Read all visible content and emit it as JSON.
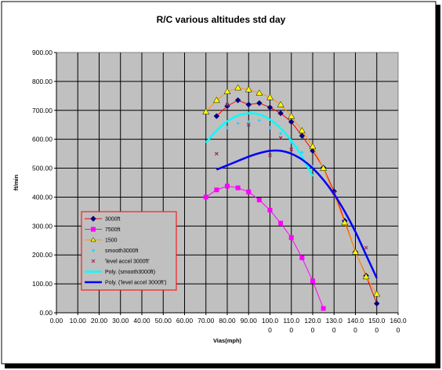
{
  "chart_data": {
    "type": "line",
    "title": "R/C various altitudes std day",
    "xlabel": "Vias(mph)",
    "ylabel": "ft/min",
    "xlim": [
      0,
      160
    ],
    "ylim": [
      0,
      900
    ],
    "x_ticks": [
      [
        "0.00",
        ""
      ],
      [
        "10.00",
        ""
      ],
      [
        "20.00",
        ""
      ],
      [
        "30.00",
        ""
      ],
      [
        "40.00",
        ""
      ],
      [
        "50.00",
        ""
      ],
      [
        "60.00",
        ""
      ],
      [
        "70.00",
        ""
      ],
      [
        "80.00",
        ""
      ],
      [
        "90.00",
        ""
      ],
      [
        "100.0",
        "0"
      ],
      [
        "110.0",
        "0"
      ],
      [
        "120.0",
        "0"
      ],
      [
        "130.0",
        "0"
      ],
      [
        "140.0",
        "0"
      ],
      [
        "150.0",
        "0"
      ],
      [
        "160.0",
        "0"
      ]
    ],
    "y_ticks": [
      "0.00",
      "100.00",
      "200.00",
      "300.00",
      "400.00",
      "500.00",
      "600.00",
      "700.00",
      "800.00",
      "900.00"
    ],
    "grid": true,
    "legend_position": "bottom-left",
    "series": [
      {
        "name": "3000ft",
        "color": "#000080",
        "marker": "diamond",
        "line": true,
        "x": [
          75,
          80,
          85,
          90,
          95,
          100,
          105,
          110,
          115,
          120,
          125,
          130,
          135,
          140,
          145,
          150
        ],
        "y": [
          680,
          715,
          735,
          720,
          725,
          710,
          690,
          660,
          612,
          560,
          502,
          420,
          318,
          210,
          128,
          32
        ]
      },
      {
        "name": "7500ft",
        "color": "#ff00ff",
        "marker": "square",
        "line": true,
        "x": [
          70,
          75,
          80,
          85,
          90,
          95,
          100,
          105,
          110,
          115,
          120,
          125
        ],
        "y": [
          400,
          425,
          438,
          432,
          418,
          390,
          355,
          310,
          260,
          190,
          110,
          15
        ]
      },
      {
        "name": "1500",
        "color": "#ffff00",
        "marker": "triangle",
        "line": true,
        "x": [
          70,
          75,
          80,
          85,
          90,
          95,
          100,
          105,
          110,
          115,
          120,
          125,
          135,
          140,
          145,
          150
        ],
        "y": [
          695,
          735,
          765,
          778,
          772,
          760,
          745,
          720,
          680,
          630,
          575,
          500,
          312,
          210,
          125,
          65
        ]
      },
      {
        "name": "smooth3000ft",
        "color": "#33ccff",
        "marker": "asterisk",
        "line": false,
        "x": [
          80,
          85,
          90,
          95,
          100,
          105,
          110,
          115,
          120
        ],
        "y": [
          640,
          655,
          660,
          665,
          640,
          620,
          590,
          555,
          505
        ]
      },
      {
        "name": "'level accel 3000ft'",
        "color": "#993366",
        "marker": "x",
        "line": false,
        "x": [
          75,
          80,
          90,
          100,
          105,
          110,
          130,
          145
        ],
        "y": [
          550,
          720,
          650,
          545,
          605,
          565,
          415,
          225
        ]
      },
      {
        "name": "Poly. (smooth3000ft)",
        "color": "#00ffff",
        "marker": "none",
        "line": true,
        "x": [
          70,
          75,
          80,
          85,
          90,
          95,
          100,
          105,
          110,
          115,
          120
        ],
        "y": [
          588,
          630,
          662,
          682,
          690,
          686,
          668,
          638,
          595,
          540,
          472
        ]
      },
      {
        "name": "Poly. ('level accel 3000ft')",
        "color": "#0000ff",
        "marker": "none",
        "line": true,
        "x": [
          75,
          80,
          85,
          90,
          95,
          100,
          105,
          110,
          115,
          120,
          125,
          130,
          135,
          140,
          145,
          150
        ],
        "y": [
          495,
          510,
          525,
          540,
          552,
          560,
          560,
          550,
          530,
          500,
          460,
          410,
          350,
          280,
          200,
          120
        ]
      }
    ]
  }
}
